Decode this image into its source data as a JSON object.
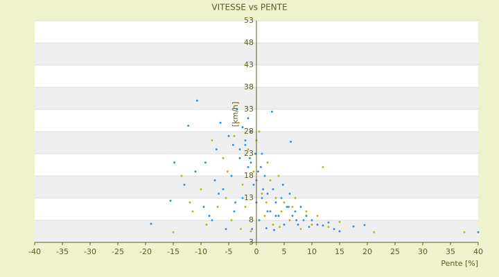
{
  "chart_data": {
    "type": "scatter",
    "title": "VITESSE vs PENTE",
    "x_label": "Pente [%]",
    "y_label": "[km/h]",
    "xlim": [
      -40,
      40
    ],
    "xticks": [
      -40,
      -35,
      -30,
      -25,
      -20,
      -15,
      -10,
      -5,
      0,
      5,
      10,
      15,
      20,
      25,
      30,
      35,
      40
    ],
    "ylim": [
      3,
      53
    ],
    "yticks": [
      3,
      8,
      13,
      18,
      23,
      28,
      33,
      38,
      43,
      48,
      53
    ],
    "grid": true,
    "series": [
      {
        "color": "#3d8fd6",
        "x": [
          -19,
          -15.5,
          -10.7,
          -12.3,
          -14.8,
          -13,
          -11,
          -9.5,
          -8,
          -7.2,
          -6.5,
          -6,
          -5.5,
          -5,
          -4.5,
          -4,
          -3.5,
          -3,
          -2.5,
          -2,
          -1.5,
          -1,
          -0.5,
          0,
          0.5,
          1,
          1.5,
          2,
          2.5,
          3,
          3.5,
          4,
          4.5,
          5,
          5.5,
          6,
          6.5,
          7,
          7.5,
          8,
          8.5,
          9,
          9.5,
          10,
          11,
          12,
          13,
          14,
          15,
          17.5,
          19.5,
          40,
          -3,
          -2,
          -1,
          0,
          1,
          2,
          -2.5,
          -1.5,
          0.3,
          1.2,
          2.8,
          -0.8,
          3.5,
          4.8,
          5.8,
          7.2,
          -8.5,
          -6.8,
          -4.2,
          -9.2,
          -7.5,
          6.2,
          -1.2,
          0.8,
          -3.8,
          1.8,
          3.2,
          -0.2
        ],
        "values": [
          7.2,
          12.4,
          35,
          29.3,
          21,
          16,
          19,
          11,
          8,
          24,
          30,
          15,
          6,
          27,
          18,
          10,
          33,
          22,
          13,
          25,
          20,
          28,
          16,
          12,
          8,
          23,
          18,
          14,
          10,
          15,
          12,
          9,
          13,
          7,
          11,
          14,
          9,
          10,
          7,
          11,
          8,
          9,
          6.5,
          8,
          7,
          6.8,
          7.5,
          6,
          5.5,
          6.6,
          6.9,
          5.3,
          24,
          26,
          21,
          17,
          13,
          10,
          29,
          31,
          19,
          15,
          32.5,
          6,
          9,
          16,
          11,
          8,
          9,
          14,
          25,
          21,
          17,
          25.7,
          22,
          20,
          12,
          6.2,
          5.8,
          23
        ]
      },
      {
        "color": "#b8b820",
        "x": [
          -15,
          -12,
          -13.5,
          -10,
          -9,
          -7,
          -6,
          -5.2,
          -4.5,
          -4,
          -3.2,
          -2.5,
          -2,
          -1.5,
          -1,
          -0.5,
          0.5,
          1,
          1.5,
          2,
          2.5,
          3,
          3.5,
          4,
          4.5,
          5,
          6,
          7,
          8,
          9,
          10,
          11,
          12,
          13,
          15,
          21.2,
          37.5,
          -8,
          -5.5,
          -2.8,
          0,
          1.8,
          4.2,
          6.5,
          -11.5
        ],
        "values": [
          5.3,
          12,
          18,
          15,
          7,
          11,
          22,
          19,
          8,
          27,
          30,
          16,
          11,
          24,
          5.5,
          19,
          28,
          14,
          9,
          21,
          17,
          7,
          13,
          18,
          10,
          12,
          8,
          13,
          6,
          10,
          7,
          9,
          20,
          6.5,
          7.6,
          5.3,
          5.3,
          26,
          13,
          6,
          26,
          12,
          6.5,
          11,
          10
        ]
      }
    ]
  }
}
